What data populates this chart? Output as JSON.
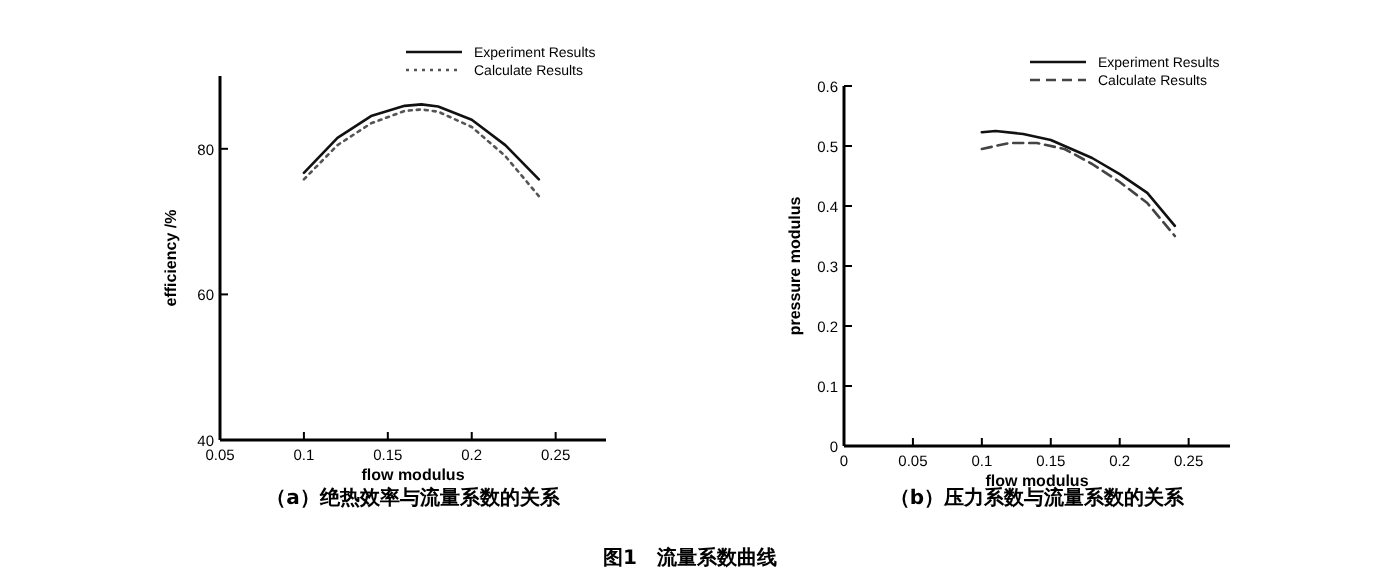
{
  "chart_data": [
    {
      "type": "line",
      "xlabel": "flow modulus",
      "ylabel": "efficiency /%",
      "xlim": [
        0.05,
        0.28
      ],
      "ylim": [
        40,
        90
      ],
      "xticks": [
        0.05,
        0.1,
        0.15,
        0.2,
        0.25
      ],
      "yticks": [
        40,
        60,
        80
      ],
      "legend": "top right",
      "grid": false,
      "series": [
        {
          "name": "Experiment Results",
          "color": "#111111",
          "line_style": "solid",
          "x": [
            0.1,
            0.12,
            0.14,
            0.16,
            0.17,
            0.18,
            0.2,
            0.22,
            0.24
          ],
          "values": [
            76.7,
            81.5,
            84.5,
            85.9,
            86.1,
            85.8,
            84,
            80.5,
            75.8
          ]
        },
        {
          "name": "Calculate Results",
          "color": "#555555",
          "line_style": "dotted",
          "x": [
            0.1,
            0.12,
            0.14,
            0.16,
            0.17,
            0.18,
            0.2,
            0.22,
            0.24
          ],
          "values": [
            75.8,
            80.5,
            83.5,
            85.2,
            85.4,
            85.1,
            83,
            79,
            73.5
          ]
        }
      ],
      "annotations": [
        "（a）绝热效率与流量系数的关系",
        "图1　流量系数曲线"
      ]
    },
    {
      "type": "line",
      "xlabel": "flow modulus",
      "ylabel": "pressure modulus",
      "xlim": [
        0,
        0.28
      ],
      "ylim": [
        0,
        0.6
      ],
      "xticks": [
        0,
        0.05,
        0.1,
        0.15,
        0.2,
        0.25
      ],
      "yticks": [
        0,
        0.1,
        0.2,
        0.3,
        0.4,
        0.5,
        0.6
      ],
      "legend": "top right",
      "grid": false,
      "series": [
        {
          "name": "Experiment Results",
          "color": "#111111",
          "line_style": "solid",
          "x": [
            0.1,
            0.11,
            0.13,
            0.15,
            0.18,
            0.2,
            0.22,
            0.24
          ],
          "values": [
            0.523,
            0.525,
            0.52,
            0.51,
            0.48,
            0.453,
            0.422,
            0.367
          ]
        },
        {
          "name": "Calculate Results",
          "color": "#444444",
          "line_style": "dashed",
          "x": [
            0.1,
            0.12,
            0.14,
            0.16,
            0.18,
            0.2,
            0.22,
            0.24
          ],
          "values": [
            0.495,
            0.505,
            0.505,
            0.495,
            0.47,
            0.44,
            0.405,
            0.35
          ]
        }
      ],
      "annotations": [
        "（b）压力系数与流量系数的关系"
      ]
    }
  ]
}
